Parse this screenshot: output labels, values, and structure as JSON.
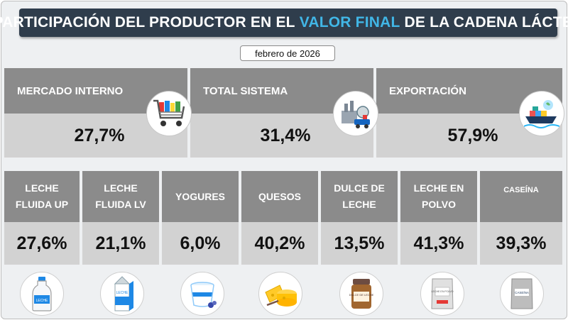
{
  "title": {
    "part1": "PARTICIPACIÓN DEL PRODUCTOR EN EL",
    "highlight": "VALOR FINAL",
    "part2": "DE LA CADENA LÁCTEA"
  },
  "date": "febrero de 2026",
  "markets": [
    {
      "label": "MERCADO INTERNO",
      "value": "27,7%",
      "icon": "shopping-cart-icon"
    },
    {
      "label": "TOTAL SISTEMA",
      "value": "31,4%",
      "icon": "dairy-factory-icon"
    },
    {
      "label": "EXPORTACIÓN",
      "value": "57,9%",
      "icon": "cargo-ship-icon"
    }
  ],
  "products": [
    {
      "line1": "LECHE",
      "line2": "FLUIDA UP",
      "value": "27,6%",
      "icon": "milk-bottle-icon"
    },
    {
      "line1": "LECHE",
      "line2": "FLUIDA LV",
      "value": "21,1%",
      "icon": "milk-carton-icon"
    },
    {
      "line1": "YOGURES",
      "line2": "",
      "value": "6,0%",
      "icon": "yogurt-cup-icon"
    },
    {
      "line1": "QUESOS",
      "line2": "",
      "value": "40,2%",
      "icon": "cheese-icon"
    },
    {
      "line1": "DULCE DE",
      "line2": "LECHE",
      "value": "13,5%",
      "icon": "dulce-de-leche-jar-icon"
    },
    {
      "line1": "LECHE EN",
      "line2": "POLVO",
      "value": "41,3%",
      "icon": "milk-powder-bag-icon"
    },
    {
      "line1": "CASEÍNA",
      "line2": "",
      "value": "39,3%",
      "icon": "casein-bag-icon"
    }
  ],
  "icon_labels": {
    "milk_bottle": "LECHE",
    "milk_carton": "LECHE",
    "jar": "DULCE DE LECHE",
    "powder": "LECHE EN POLVO",
    "casein": "CASEÍNA"
  },
  "colors": {
    "title_bg": "#2f3d4c",
    "highlight": "#41b6e6",
    "header_gray": "#8b8b8b",
    "value_gray": "#d2d2d2"
  }
}
